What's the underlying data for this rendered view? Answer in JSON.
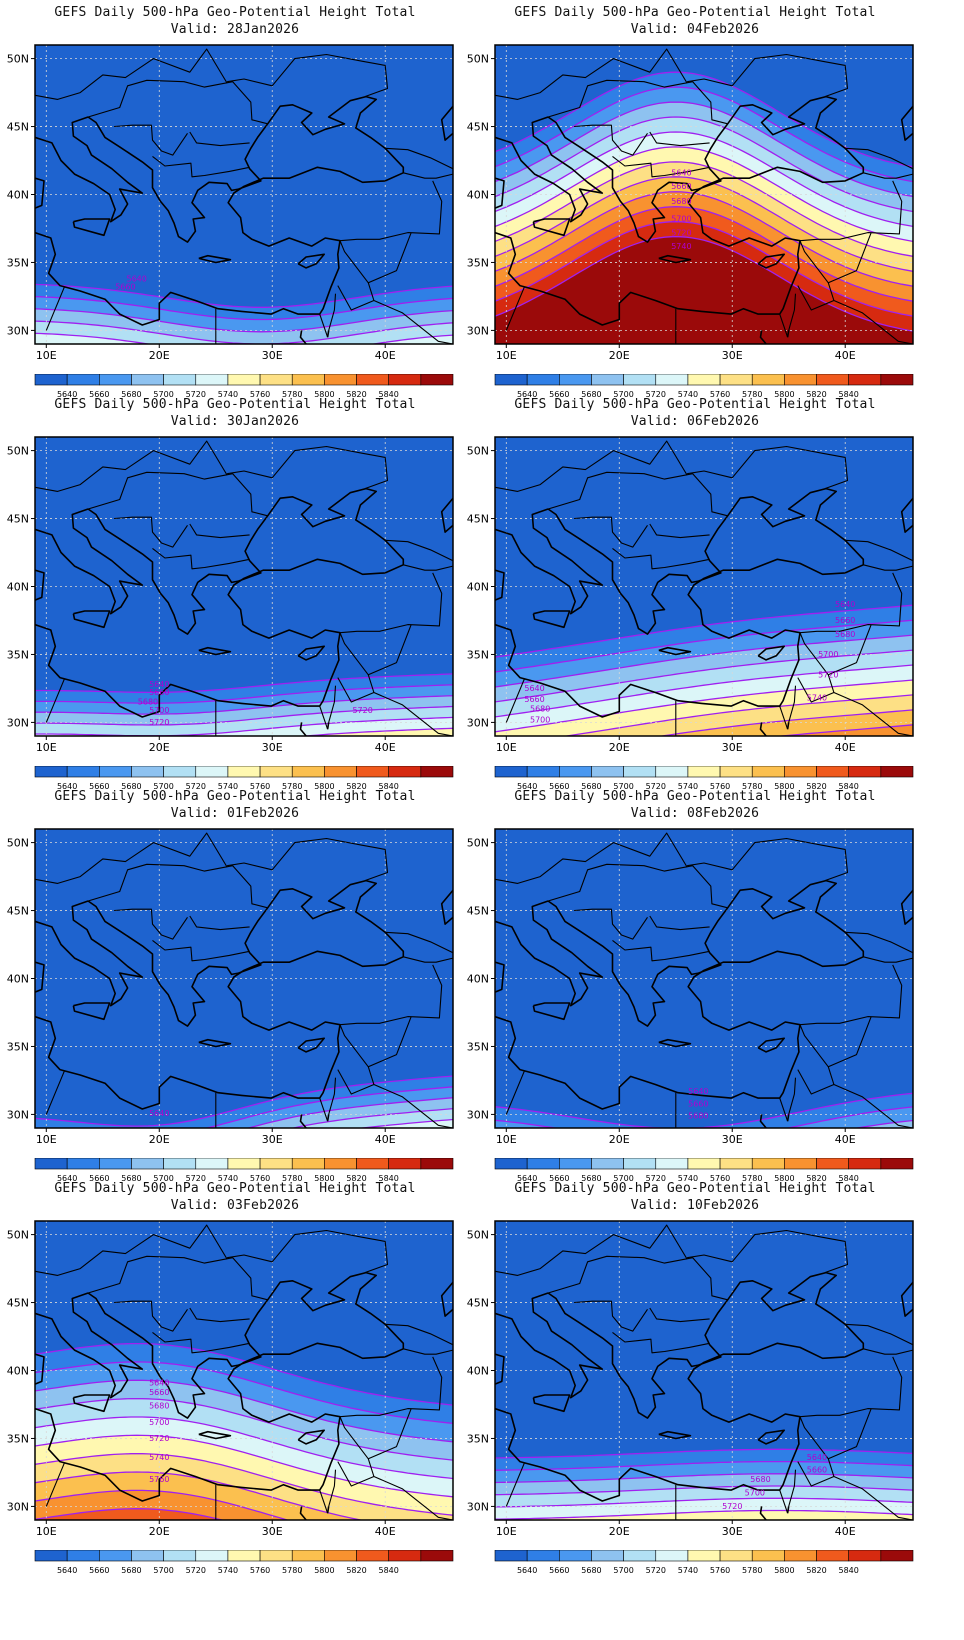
{
  "panels": [
    {
      "title": "GEFS Daily 500-hPa Geo-Potential Height Total",
      "valid": "Valid: 28Jan2026",
      "bands": [
        {
          "z": 5640,
          "lat": 33.5
        }
      ],
      "contour_labels": [
        {
          "value": "5640",
          "lon": 18,
          "lat": 33.6
        },
        {
          "value": "5660",
          "lon": 17,
          "lat": 33.0
        }
      ]
    },
    {
      "title": "GEFS Daily 500-hPa Geo-Potential Height Total",
      "valid": "Valid: 04Feb2026",
      "bands": [
        {
          "z": 5640,
          "lat": 41.5
        }
      ],
      "contour_labels": [
        {
          "value": "5640",
          "lon": 25.5,
          "lat": 41.4
        },
        {
          "value": "5660",
          "lon": 25.5,
          "lat": 40.4
        },
        {
          "value": "5680",
          "lon": 25.5,
          "lat": 39.3
        },
        {
          "value": "5700",
          "lon": 25.5,
          "lat": 38.0
        },
        {
          "value": "5720",
          "lon": 25.5,
          "lat": 37.0
        },
        {
          "value": "5740",
          "lon": 25.5,
          "lat": 36.0
        }
      ]
    },
    {
      "title": "GEFS Daily 500-hPa Geo-Potential Height Total",
      "valid": "Valid: 30Jan2026",
      "bands": [
        {
          "z": 5640,
          "lat": 33.0
        }
      ],
      "contour_labels": [
        {
          "value": "5640",
          "lon": 20,
          "lat": 32.6
        },
        {
          "value": "5660",
          "lon": 20,
          "lat": 32.0
        },
        {
          "value": "5680",
          "lon": 19,
          "lat": 31.3
        },
        {
          "value": "5700",
          "lon": 20,
          "lat": 30.7
        },
        {
          "value": "5720",
          "lon": 20,
          "lat": 29.8
        },
        {
          "value": "5720",
          "lon": 38,
          "lat": 30.7
        }
      ]
    },
    {
      "title": "GEFS Daily 500-hPa Geo-Potential Height Total",
      "valid": "Valid: 06Feb2026",
      "bands": [
        {
          "z": 5640,
          "lat": 36.5
        }
      ],
      "contour_labels": [
        {
          "value": "5640",
          "lon": 40,
          "lat": 38.5
        },
        {
          "value": "5660",
          "lon": 40,
          "lat": 37.3
        },
        {
          "value": "5680",
          "lon": 40,
          "lat": 36.3
        },
        {
          "value": "5700",
          "lon": 38.5,
          "lat": 34.8
        },
        {
          "value": "5720",
          "lon": 38.5,
          "lat": 33.3
        },
        {
          "value": "5740",
          "lon": 37.5,
          "lat": 31.6
        },
        {
          "value": "5640",
          "lon": 12.5,
          "lat": 32.3
        },
        {
          "value": "5660",
          "lon": 12.5,
          "lat": 31.5
        },
        {
          "value": "5680",
          "lon": 13,
          "lat": 30.8
        },
        {
          "value": "5700",
          "lon": 13,
          "lat": 30.0
        }
      ]
    },
    {
      "title": "GEFS Daily 500-hPa Geo-Potential Height Total",
      "valid": "Valid: 01Feb2026",
      "bands": [
        {
          "z": 5640,
          "lat": 31.5
        }
      ],
      "contour_labels": [
        {
          "value": "5640",
          "lon": 20,
          "lat": 29.9
        }
      ]
    },
    {
      "title": "GEFS Daily 500-hPa Geo-Potential Height Total",
      "valid": "Valid: 08Feb2026",
      "bands": [
        {
          "z": 5640,
          "lat": 31.5
        }
      ],
      "contour_labels": [
        {
          "value": "5640",
          "lon": 27,
          "lat": 31.5
        },
        {
          "value": "5660",
          "lon": 27,
          "lat": 30.6
        },
        {
          "value": "5680",
          "lon": 27,
          "lat": 29.7
        }
      ]
    },
    {
      "title": "GEFS Daily 500-hPa Geo-Potential Height Total",
      "valid": "Valid: 03Feb2026",
      "bands": [
        {
          "z": 5640,
          "lat": 38.5
        }
      ],
      "contour_labels": [
        {
          "value": "5640",
          "lon": 20,
          "lat": 38.9
        },
        {
          "value": "5660",
          "lon": 20,
          "lat": 38.2
        },
        {
          "value": "5680",
          "lon": 20,
          "lat": 37.2
        },
        {
          "value": "5700",
          "lon": 20,
          "lat": 36.0
        },
        {
          "value": "5720",
          "lon": 20,
          "lat": 34.8
        },
        {
          "value": "5740",
          "lon": 20,
          "lat": 33.4
        },
        {
          "value": "5760",
          "lon": 20,
          "lat": 31.8
        }
      ]
    },
    {
      "title": "GEFS Daily 500-hPa Geo-Potential Height Total",
      "valid": "Valid: 10Feb2026",
      "bands": [
        {
          "z": 5640,
          "lat": 33.5
        }
      ],
      "contour_labels": [
        {
          "value": "5640",
          "lon": 37.5,
          "lat": 33.4
        },
        {
          "value": "5660",
          "lon": 37.5,
          "lat": 32.5
        },
        {
          "value": "5680",
          "lon": 32.5,
          "lat": 31.8
        },
        {
          "value": "5700",
          "lon": 32,
          "lat": 30.8
        },
        {
          "value": "5720",
          "lon": 30,
          "lat": 29.8
        }
      ]
    }
  ],
  "map": {
    "lon_range": [
      9,
      46
    ],
    "lat_range": [
      29,
      51
    ],
    "lon_ticks": [
      10,
      20,
      30,
      40
    ],
    "lat_ticks": [
      30,
      35,
      40,
      45,
      50
    ],
    "lon_tick_labels": [
      "10E",
      "20E",
      "30E",
      "40E"
    ],
    "lat_tick_labels": [
      "30N",
      "35N",
      "40N",
      "45N",
      "50N"
    ],
    "contour_interval": 20
  },
  "colorbar": {
    "levels": [
      "5640",
      "5660",
      "5680",
      "5700",
      "5720",
      "5740",
      "5760",
      "5780",
      "5800",
      "5820",
      "5840"
    ],
    "colors": [
      "#1e63cf",
      "#2f7fe6",
      "#4a98f0",
      "#8ec2f0",
      "#b2e0f4",
      "#dcf6f8",
      "#fff8b0",
      "#fde085",
      "#fbc04f",
      "#f89230",
      "#f05a1d",
      "#d62a10",
      "#9b0a0a"
    ]
  },
  "colors": {
    "contour": "#a020f0",
    "coast": "#000000",
    "grid": "#d8d8d8"
  }
}
